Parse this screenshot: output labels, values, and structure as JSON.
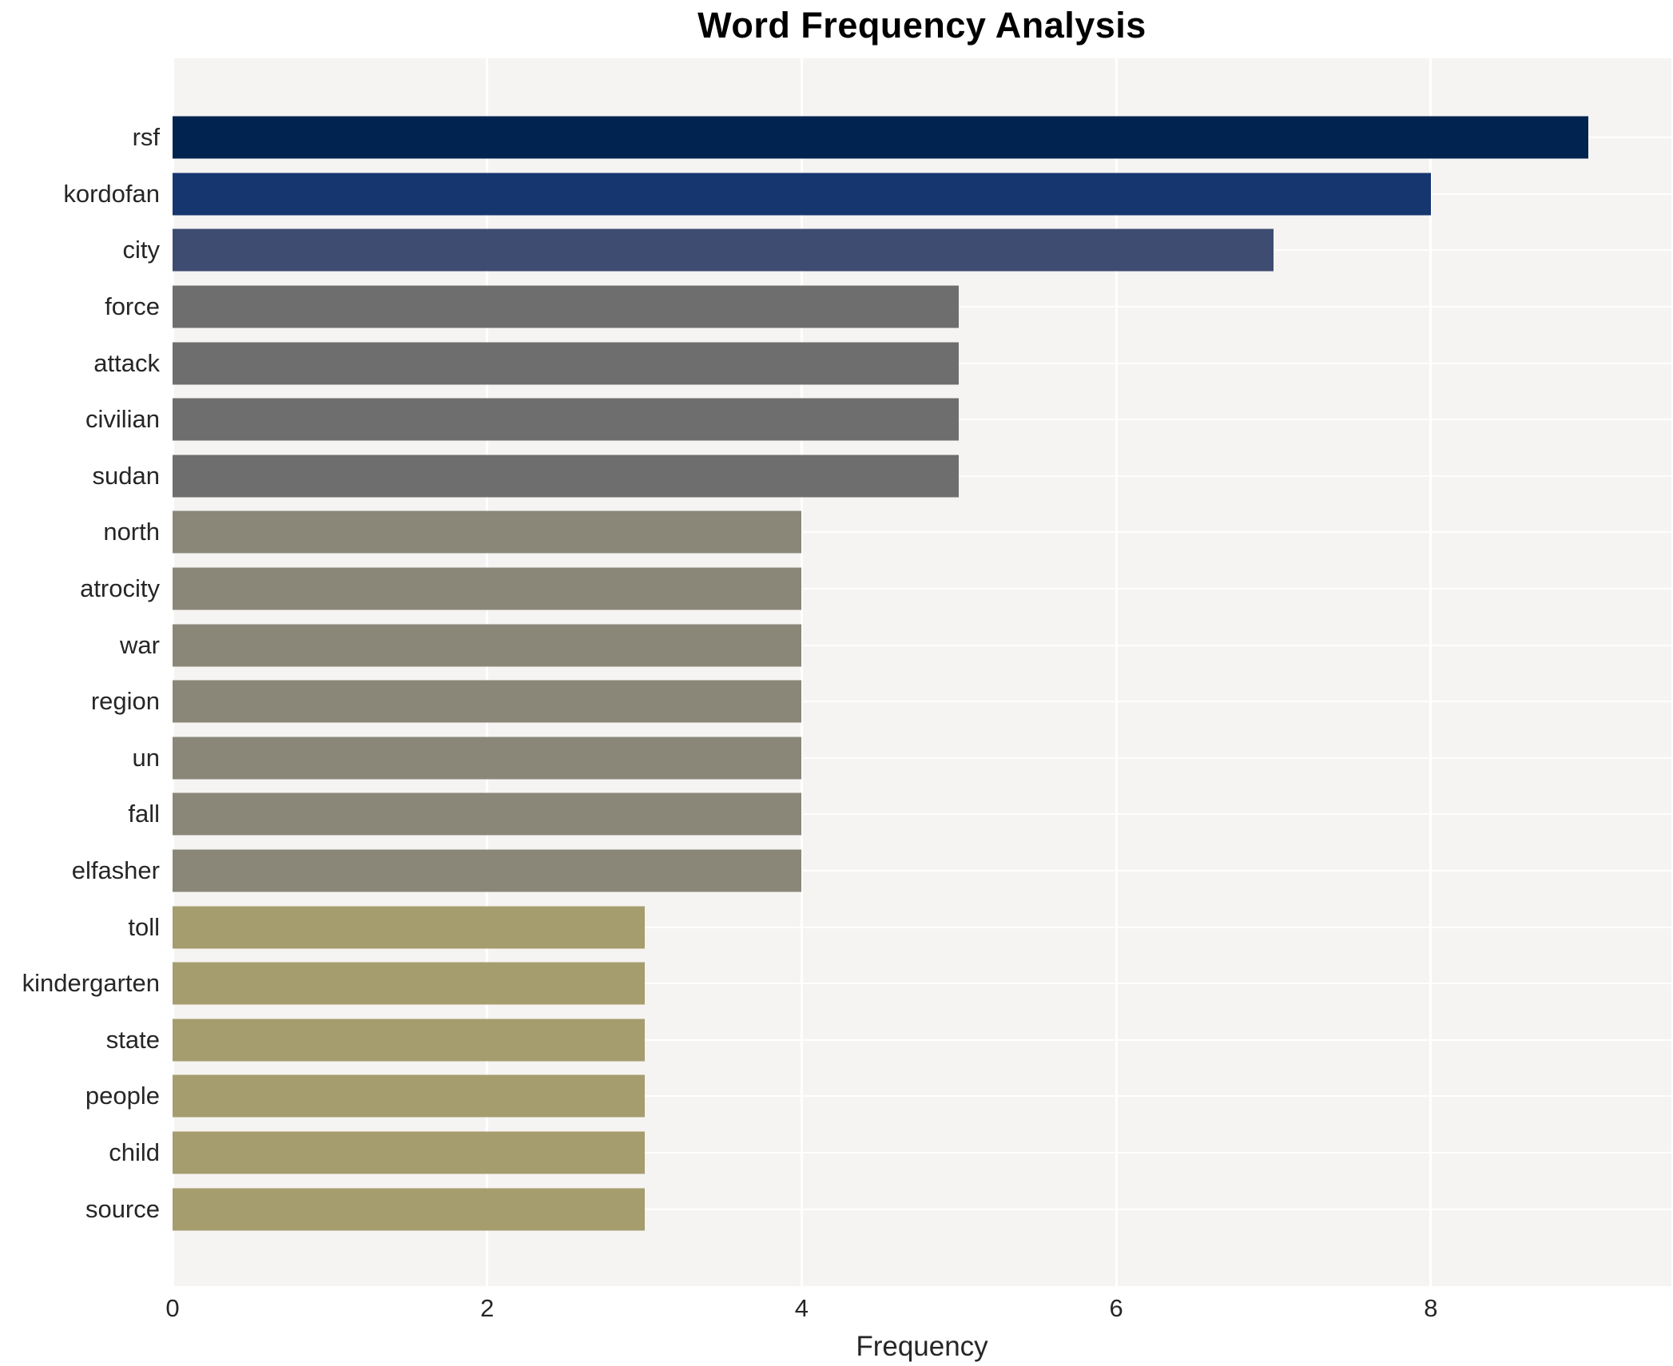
{
  "chart_data": {
    "type": "bar",
    "orientation": "horizontal",
    "title": "Word Frequency Analysis",
    "xlabel": "Frequency",
    "ylabel": "",
    "categories": [
      "rsf",
      "kordofan",
      "city",
      "force",
      "attack",
      "civilian",
      "sudan",
      "north",
      "atrocity",
      "war",
      "region",
      "un",
      "fall",
      "elfasher",
      "toll",
      "kindergarten",
      "state",
      "people",
      "child",
      "source"
    ],
    "values": [
      9,
      8,
      7,
      5,
      5,
      5,
      5,
      4,
      4,
      4,
      4,
      4,
      4,
      4,
      3,
      3,
      3,
      3,
      3,
      3
    ],
    "bar_colors": [
      "#002350",
      "#16366f",
      "#3e4c71",
      "#6f6e6f",
      "#6f6e6f",
      "#6f6e6f",
      "#6f6e6f",
      "#8a8779",
      "#8a8779",
      "#8a8779",
      "#8a8779",
      "#8a8779",
      "#8a8779",
      "#8a8779",
      "#a69d6e",
      "#a69d6e",
      "#a69d6e",
      "#a69d6e",
      "#a69d6e",
      "#a69d6e"
    ],
    "xticks": [
      0,
      2,
      4,
      6,
      8
    ],
    "xlim": [
      0,
      9.53
    ],
    "grid": "on",
    "legend": "none",
    "plot_bg": "#f5f4f2",
    "grid_color": "#ffffff",
    "text_color": "#262626",
    "title_color": "#000000"
  }
}
